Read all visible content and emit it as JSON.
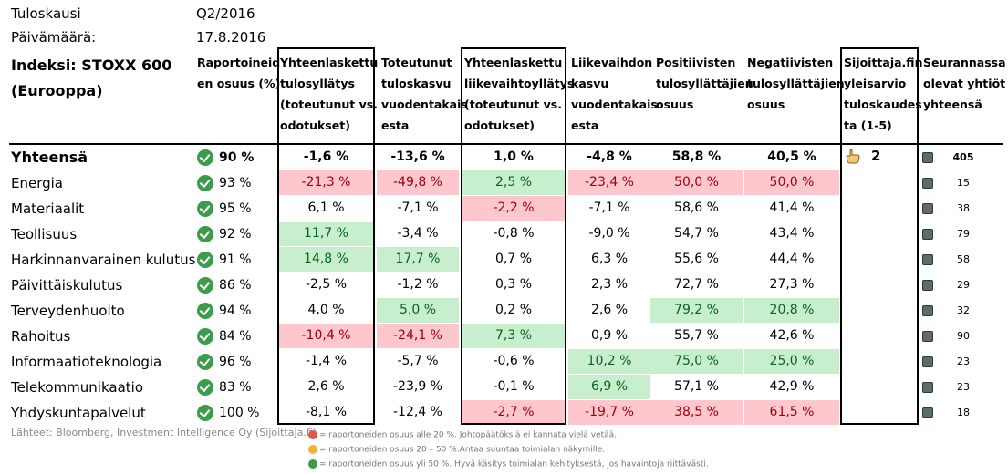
{
  "meta": {
    "period_label": "Tuloskausi",
    "period_value": "Q2/2016",
    "date_label": "Päivämäärä:",
    "date_value": "17.8.2016"
  },
  "index": {
    "title_line1": "Indeksi: STOXX 600",
    "title_line2": "(Eurooppa)"
  },
  "headers": {
    "share": [
      "Raportoineid",
      "en osuus (%)"
    ],
    "eps_surprise": [
      "Yhteenlaskettu",
      "tulosyllätys",
      "(toteutunut vs.",
      "odotukset)"
    ],
    "eps_growth": [
      "Toteutunut",
      "tuloskasvu",
      "vuodentakais",
      "esta"
    ],
    "rev_surprise": [
      "Yhteenlaskettu",
      "liikevaihtoyllätys",
      "(toteutunut vs.",
      "odotukset)"
    ],
    "rev_growth": [
      "Liikevaihdon",
      "kasvu",
      "vuodentakais",
      "esta"
    ],
    "positive": [
      "Positiivisten",
      "tulosyllättäjien",
      "osuus"
    ],
    "negative": [
      "Negatiivisten",
      "tulosyllättäjien",
      "osuus"
    ],
    "rating": [
      "Sijoittaja.fin",
      "yleisarvio",
      "tuloskaudes",
      "ta (1-5)"
    ],
    "count": [
      "Seurannassa",
      "olevat yhtiöt",
      "yhteensä"
    ]
  },
  "total": {
    "name": "Yhteensä",
    "share": "90 %",
    "eps_surprise": "-1,6 %",
    "eps_growth": "-13,6 %",
    "rev_surprise": "1,0 %",
    "rev_growth": "-4,8 %",
    "positive": "58,8 %",
    "negative": "40,5 %",
    "rating": "2",
    "count": "405"
  },
  "rows": [
    {
      "name": "Energia",
      "share": "93 %",
      "eps_surprise": "-21,3 %",
      "eps_growth": "-49,8 %",
      "rev_surprise": "2,5 %",
      "rev_growth": "-23,4 %",
      "positive": "50,0 %",
      "negative": "50,0 %",
      "count": "15"
    },
    {
      "name": "Materiaalit",
      "share": "95 %",
      "eps_surprise": "6,1 %",
      "eps_growth": "-7,1 %",
      "rev_surprise": "-2,2 %",
      "rev_growth": "-7,1 %",
      "positive": "58,6 %",
      "negative": "41,4 %",
      "count": "38"
    },
    {
      "name": "Teollisuus",
      "share": "92 %",
      "eps_surprise": "11,7 %",
      "eps_growth": "-3,4 %",
      "rev_surprise": "-0,8 %",
      "rev_growth": "-9,0 %",
      "positive": "54,7 %",
      "negative": "43,4 %",
      "count": "79"
    },
    {
      "name": "Harkinnanvarainen kulutus",
      "share": "91 %",
      "eps_surprise": "14,8 %",
      "eps_growth": "17,7 %",
      "rev_surprise": "0,7 %",
      "rev_growth": "6,3 %",
      "positive": "55,6 %",
      "negative": "44,4 %",
      "count": "58"
    },
    {
      "name": "Päivittäiskulutus",
      "share": "86 %",
      "eps_surprise": "-2,5 %",
      "eps_growth": "-1,2 %",
      "rev_surprise": "0,3 %",
      "rev_growth": "2,3 %",
      "positive": "72,7 %",
      "negative": "27,3 %",
      "count": "29"
    },
    {
      "name": "Terveydenhuolto",
      "share": "94 %",
      "eps_surprise": "4,0 %",
      "eps_growth": "5,0 %",
      "rev_surprise": "0,2 %",
      "rev_growth": "2,6 %",
      "positive": "79,2 %",
      "negative": "20,8 %",
      "count": "32"
    },
    {
      "name": "Rahoitus",
      "share": "84 %",
      "eps_surprise": "-10,4 %",
      "eps_growth": "-24,1 %",
      "rev_surprise": "7,3 %",
      "rev_growth": "0,9 %",
      "positive": "55,7 %",
      "negative": "42,6 %",
      "count": "90"
    },
    {
      "name": "Informaatioteknologia",
      "share": "96 %",
      "eps_surprise": "-1,4 %",
      "eps_growth": "-5,7 %",
      "rev_surprise": "-0,6 %",
      "rev_growth": "10,2 %",
      "positive": "75,0 %",
      "negative": "25,0 %",
      "count": "23"
    },
    {
      "name": "Telekommunikaatio",
      "share": "83 %",
      "eps_surprise": "2,6 %",
      "eps_growth": "-23,9 %",
      "rev_surprise": "-0,1 %",
      "rev_growth": "6,9 %",
      "positive": "57,1 %",
      "negative": "42,9 %",
      "count": "23"
    },
    {
      "name": "Yhdyskuntapalvelut",
      "share": "100 %",
      "eps_surprise": "-8,1 %",
      "eps_growth": "-12,4 %",
      "rev_surprise": "-2,7 %",
      "rev_growth": "-19,7 %",
      "positive": "38,5 %",
      "negative": "61,5 %",
      "count": "18"
    }
  ],
  "highlights": {
    "positive": [
      "1.rev_surprise",
      "3.eps_surprise",
      "4.eps_surprise",
      "4.eps_growth",
      "6.eps_growth",
      "6.positive",
      "6.negative",
      "7.rev_surprise",
      "8.rev_growth",
      "8.positive",
      "8.negative",
      "9.rev_growth"
    ],
    "negative": [
      "1.eps_surprise",
      "1.eps_growth",
      "1.rev_growth",
      "1.positive",
      "1.negative",
      "2.rev_surprise",
      "7.eps_surprise",
      "7.eps_growth",
      "10.rev_surprise",
      "10.rev_growth",
      "10.positive",
      "10.negative"
    ]
  },
  "colors": {
    "positive_bg": "#c7eecd",
    "positive_text": "#0a6321",
    "negative_bg": "#fec7cd",
    "negative_text": "#a0000d",
    "check_icon": "#3c9c4c"
  },
  "footer": {
    "source": "Lähteet: Bloomberg, Investment Intelligence Oy (Sijoittaja.fi)",
    "legend_red": "= raportoneiden osuus alle 20 %. Johtopäätöksiä ei kannata vielä vetää.",
    "legend_yellow": "= raportoneiden osuus 20 – 50 %.Antaa suuntaa toimialan näkymille.",
    "legend_green": "= raportoneiden osuus yli 50 %. Hyvä käsitys toimialan kehityksestä, jos havaintoja riittävästi."
  },
  "icons": {
    "share_status": "check-circle-icon",
    "rating": "thumbs-hand-icon",
    "company_marker": "square-icon"
  }
}
